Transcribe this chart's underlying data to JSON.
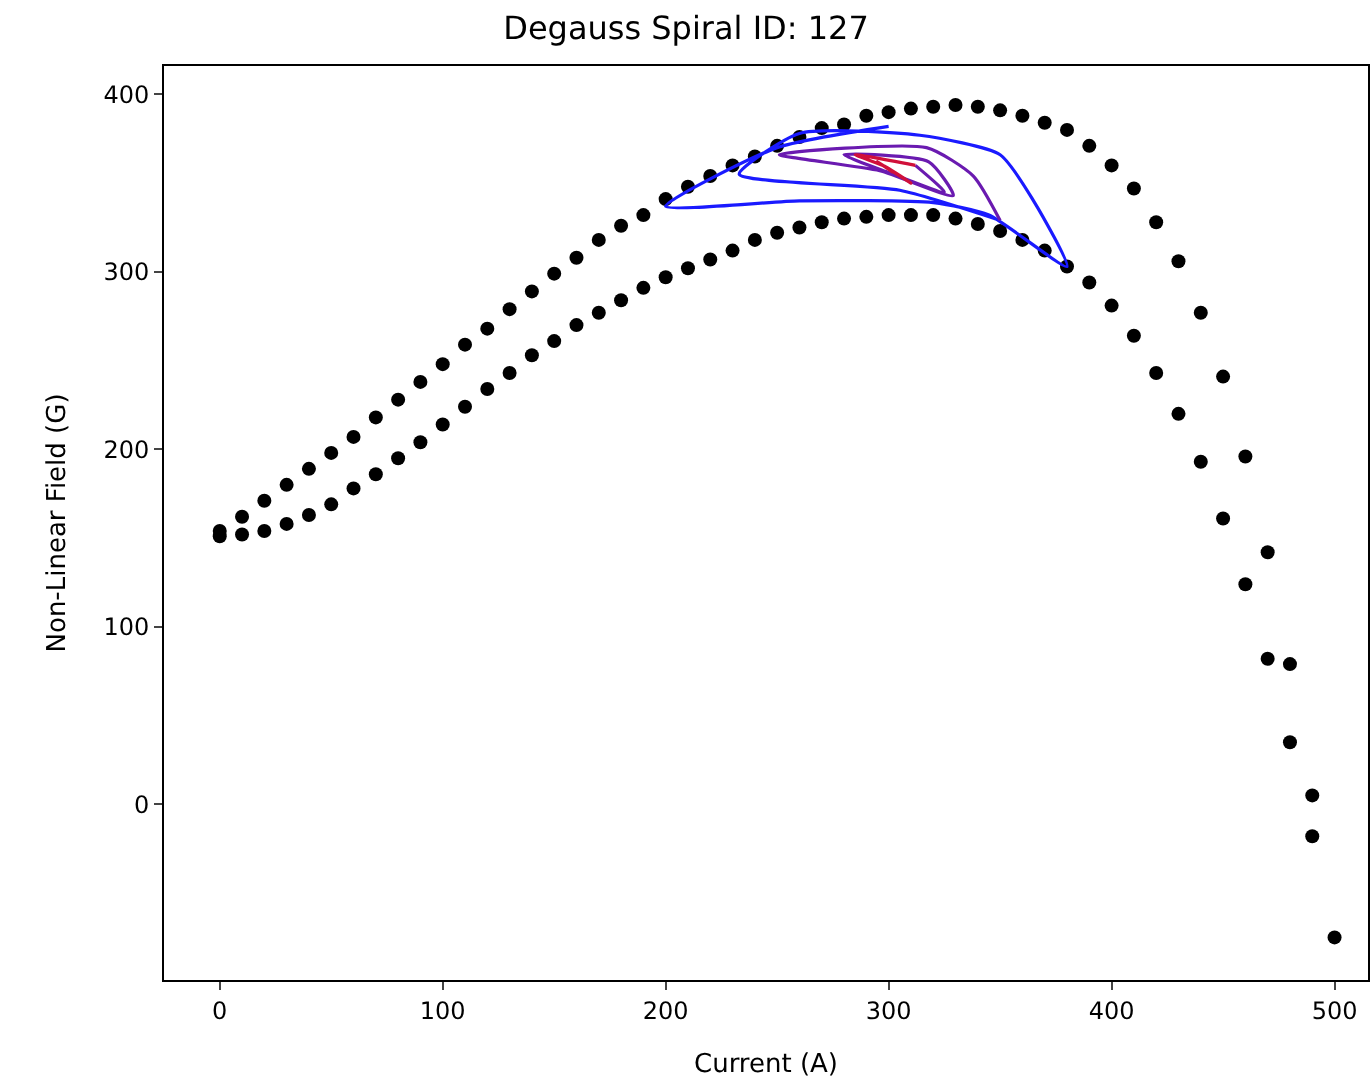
{
  "chart_data": {
    "type": "scatter",
    "title": "Degauss Spiral ID: 127",
    "xlabel": "Current (A)",
    "ylabel": "Non-Linear Field (G)",
    "xlim": [
      -25,
      515
    ],
    "xticks": [
      0,
      100,
      200,
      300,
      400,
      500
    ],
    "ylim": [
      -99,
      416
    ],
    "yticks": [
      0,
      100,
      200,
      300,
      400
    ],
    "marker": "circle",
    "series": [
      {
        "color": "#000000",
        "x": [
          0,
          10,
          20,
          30,
          40,
          50,
          60,
          70,
          80,
          90,
          100,
          110,
          120,
          130,
          140,
          150,
          160,
          170,
          180,
          190,
          200,
          210,
          220,
          230,
          240,
          250,
          260,
          270,
          280,
          290,
          300,
          310,
          320,
          330,
          340,
          350,
          360,
          370,
          380,
          390,
          400,
          410,
          420,
          430,
          440,
          450,
          460,
          470,
          480,
          490,
          500
        ],
        "values": [
          154,
          162,
          171,
          180,
          189,
          198,
          207,
          218,
          228,
          238,
          248,
          259,
          268,
          279,
          289,
          299,
          308,
          318,
          326,
          332,
          341,
          348,
          354,
          360,
          365,
          371,
          376,
          381,
          383,
          388,
          390,
          392,
          393,
          394,
          393,
          391,
          388,
          384,
          380,
          371,
          360,
          347,
          328,
          306,
          277,
          241,
          196,
          142,
          79,
          5,
          -75
        ]
      },
      {
        "color": "#000000",
        "x": [
          0,
          10,
          20,
          30,
          40,
          50,
          60,
          70,
          80,
          90,
          100,
          110,
          120,
          130,
          140,
          150,
          160,
          170,
          180,
          190,
          200,
          210,
          220,
          230,
          240,
          250,
          260,
          270,
          280,
          290,
          300,
          310,
          320,
          330,
          340,
          350,
          360,
          370,
          380,
          390,
          400,
          410,
          420,
          430,
          440,
          450,
          460,
          470,
          480,
          490
        ],
        "values": [
          151,
          152,
          154,
          158,
          163,
          169,
          178,
          186,
          195,
          204,
          214,
          224,
          234,
          243,
          253,
          261,
          270,
          277,
          284,
          291,
          297,
          302,
          307,
          312,
          318,
          322,
          325,
          328,
          330,
          331,
          332,
          332,
          332,
          330,
          327,
          323,
          318,
          312,
          303,
          294,
          281,
          264,
          243,
          220,
          193,
          161,
          124,
          82,
          35,
          -18
        ]
      },
      {
        "type": "line",
        "marker": "none",
        "color": "#1a1aff",
        "x": [
          300,
          250,
          200,
          260,
          320,
          345,
          380,
          365,
          350,
          314,
          260,
          233,
          305,
          350
        ],
        "values": [
          382,
          370,
          337,
          340,
          339,
          332,
          303,
          340,
          366,
          377,
          378,
          355,
          346,
          329
        ]
      },
      {
        "type": "line",
        "marker": "none",
        "color": "#6a1ab0",
        "x": [
          350,
          338,
          317,
          251,
          296,
          329,
          318,
          280,
          300,
          325,
          312
        ],
        "values": [
          329,
          354,
          370,
          366,
          357,
          343,
          362,
          366,
          356,
          345,
          360
        ]
      },
      {
        "type": "line",
        "marker": "none",
        "color": "#d0103a",
        "x": [
          312,
          285,
          299,
          310,
          295,
          302
        ],
        "values": [
          360,
          366,
          359,
          350,
          362,
          356
        ]
      }
    ]
  }
}
